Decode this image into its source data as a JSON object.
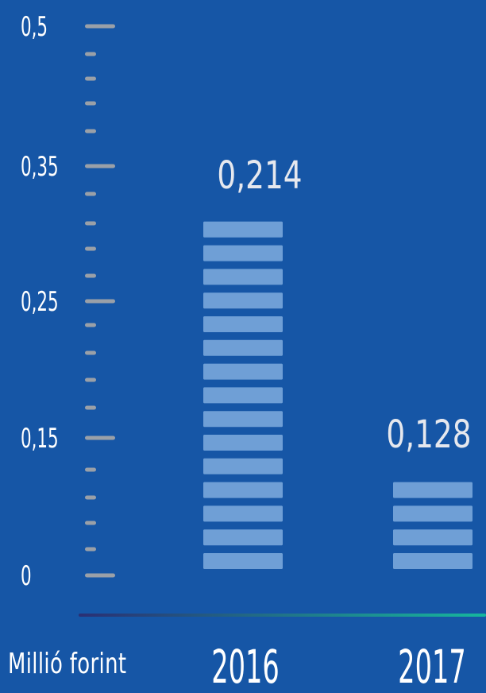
{
  "chart_data": {
    "type": "bar",
    "categories": [
      "2016",
      "2017"
    ],
    "values": [
      0.214,
      0.128
    ],
    "value_labels": [
      "0,214",
      "0,128"
    ],
    "y_tick_labels": [
      "0,5",
      "0,35",
      "0,25",
      "0,15",
      "0"
    ],
    "y_tick_values": [
      0.5,
      0.35,
      0.25,
      0.15,
      0
    ],
    "ylim": [
      0,
      0.5
    ],
    "unit_label": "Millió forint",
    "segments": [
      15,
      4
    ],
    "colors": {
      "background": "#1656a6",
      "bar": "#74a3d8",
      "tick": "#9aa0a8",
      "text": "#ffffff",
      "baseline_start": "#2a2f74",
      "baseline_end": "#16b79d"
    }
  }
}
